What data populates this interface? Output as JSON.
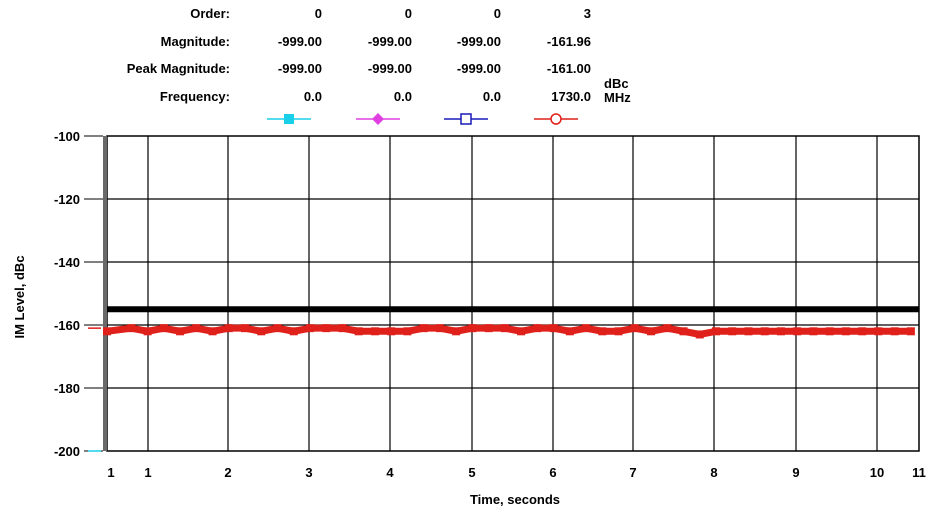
{
  "header": {
    "labels": [
      "Order:",
      "Magnitude:",
      "Peak Magnitude:",
      "Frequency:"
    ],
    "columns": [
      {
        "order": "0",
        "magnitude": "-999.00",
        "peak": "-999.00",
        "frequency": "0.0",
        "color": "#19d0e8",
        "marker": "filled-square"
      },
      {
        "order": "0",
        "magnitude": "-999.00",
        "peak": "-999.00",
        "frequency": "0.0",
        "color": "#e040e0",
        "marker": "filled-diamond"
      },
      {
        "order": "0",
        "magnitude": "-999.00",
        "peak": "-999.00",
        "frequency": "0.0",
        "color": "#1a1ab8",
        "marker": "open-square"
      },
      {
        "order": "3",
        "magnitude": "-161.96",
        "peak": "-161.00",
        "frequency": "1730.0",
        "color": "#e0201a",
        "marker": "open-circle"
      }
    ],
    "unit_mag": "dBc",
    "unit_freq": "MHz"
  },
  "chart_data": {
    "type": "line",
    "xlabel": "Time, seconds",
    "ylabel": "IM Level, dBc",
    "x_ticks": [
      "1",
      "1",
      "2",
      "3",
      "4",
      "5",
      "6",
      "7",
      "8",
      "9",
      "10",
      "11"
    ],
    "y_ticks": [
      "-100",
      "-120",
      "-140",
      "-160",
      "-180",
      "-200"
    ],
    "xlim": [
      1,
      11
    ],
    "ylim": [
      -200,
      -100
    ],
    "grid": true,
    "limit_line": {
      "y": -155,
      "color": "#000000"
    },
    "series": [
      {
        "color": "#e0201a",
        "x": [
          1.0,
          1.3,
          1.5,
          1.7,
          1.9,
          2.1,
          2.3,
          2.5,
          2.7,
          2.9,
          3.1,
          3.3,
          3.5,
          3.7,
          3.9,
          4.1,
          4.3,
          4.5,
          4.7,
          4.9,
          5.1,
          5.3,
          5.5,
          5.7,
          5.9,
          6.1,
          6.3,
          6.5,
          6.7,
          6.9,
          7.1,
          7.3,
          7.5,
          7.7,
          7.9,
          8.1,
          8.3,
          8.5,
          8.7,
          8.9,
          9.1,
          9.3,
          9.5,
          9.7,
          9.9,
          10.1,
          10.3,
          10.5,
          10.7,
          10.9
        ],
        "y": [
          -162,
          -161,
          -162,
          -161,
          -162,
          -161,
          -162,
          -161,
          -161,
          -162,
          -161,
          -162,
          -161,
          -161,
          -161,
          -162,
          -162,
          -162,
          -162,
          -161,
          -161,
          -162,
          -161,
          -161,
          -161,
          -162,
          -161,
          -161,
          -162,
          -161,
          -162,
          -162,
          -161,
          -162,
          -161,
          -162,
          -163,
          -162,
          -162,
          -162,
          -162,
          -162,
          -162,
          -162,
          -162,
          -162,
          -162,
          -162,
          -162,
          -162
        ]
      }
    ]
  }
}
